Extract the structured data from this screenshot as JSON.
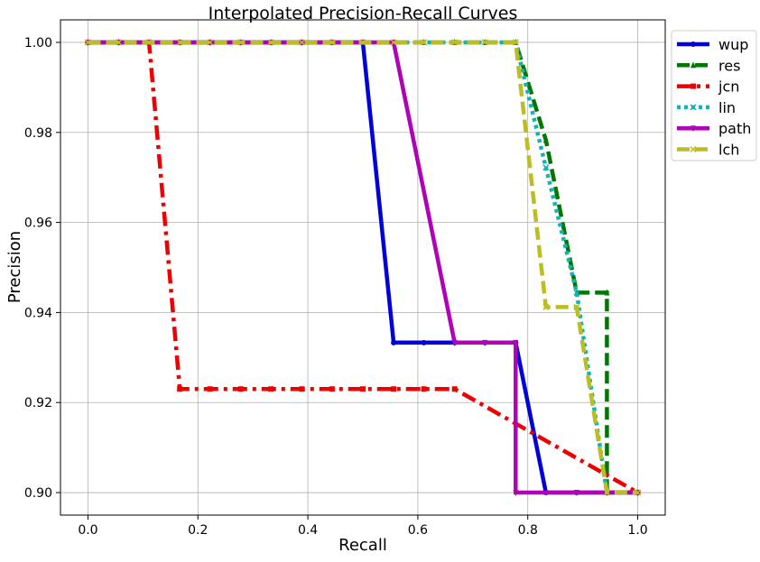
{
  "chart_data": {
    "type": "line",
    "title": "Interpolated Precision-Recall Curves",
    "xlabel": "Recall",
    "ylabel": "Precision",
    "xlim": [
      -0.05,
      1.05
    ],
    "ylim": [
      0.895,
      1.005
    ],
    "xticks": [
      0.0,
      0.2,
      0.4,
      0.6,
      0.8,
      1.0
    ],
    "xtick_labels": [
      "0.0",
      "0.2",
      "0.4",
      "0.6",
      "0.8",
      "1.0"
    ],
    "yticks": [
      0.9,
      0.92,
      0.94,
      0.96,
      0.98,
      1.0
    ],
    "ytick_labels": [
      "0.90",
      "0.92",
      "0.94",
      "0.96",
      "0.98",
      "1.00"
    ],
    "grid": true,
    "legend_position": "outside-top-right",
    "series": [
      {
        "name": "wup",
        "color": "#0000dd",
        "dash": "solid",
        "marker": "circle",
        "points": [
          [
            0.0,
            1.0
          ],
          [
            0.056,
            1.0
          ],
          [
            0.111,
            1.0
          ],
          [
            0.167,
            1.0
          ],
          [
            0.222,
            1.0
          ],
          [
            0.278,
            1.0
          ],
          [
            0.333,
            1.0
          ],
          [
            0.389,
            1.0
          ],
          [
            0.444,
            1.0
          ],
          [
            0.5,
            1.0
          ],
          [
            0.556,
            0.9333
          ],
          [
            0.611,
            0.9333
          ],
          [
            0.667,
            0.9333
          ],
          [
            0.722,
            0.9333
          ],
          [
            0.778,
            0.9333
          ],
          [
            0.833,
            0.9
          ],
          [
            0.889,
            0.9
          ],
          [
            0.944,
            0.9
          ],
          [
            1.0,
            0.9
          ]
        ]
      },
      {
        "name": "res",
        "color": "#007700",
        "dash": "dashed",
        "marker": "triangle",
        "points": [
          [
            0.0,
            1.0
          ],
          [
            0.056,
            1.0
          ],
          [
            0.111,
            1.0
          ],
          [
            0.167,
            1.0
          ],
          [
            0.222,
            1.0
          ],
          [
            0.278,
            1.0
          ],
          [
            0.333,
            1.0
          ],
          [
            0.389,
            1.0
          ],
          [
            0.444,
            1.0
          ],
          [
            0.5,
            1.0
          ],
          [
            0.556,
            1.0
          ],
          [
            0.611,
            1.0
          ],
          [
            0.667,
            1.0
          ],
          [
            0.722,
            1.0
          ],
          [
            0.778,
            1.0
          ],
          [
            0.833,
            0.9783
          ],
          [
            0.889,
            0.9444
          ],
          [
            0.944,
            0.9444
          ],
          [
            0.944,
            0.9
          ],
          [
            1.0,
            0.9
          ]
        ]
      },
      {
        "name": "jcn",
        "color": "#ee0000",
        "dash": "dashdot",
        "marker": "square",
        "points": [
          [
            0.0,
            1.0
          ],
          [
            0.056,
            1.0
          ],
          [
            0.111,
            1.0
          ],
          [
            0.167,
            0.923
          ],
          [
            0.222,
            0.923
          ],
          [
            0.278,
            0.923
          ],
          [
            0.333,
            0.923
          ],
          [
            0.389,
            0.923
          ],
          [
            0.444,
            0.923
          ],
          [
            0.5,
            0.923
          ],
          [
            0.556,
            0.923
          ],
          [
            0.611,
            0.923
          ],
          [
            0.667,
            0.923
          ],
          [
            1.0,
            0.9
          ]
        ]
      },
      {
        "name": "lin",
        "color": "#11b3b3",
        "dash": "dotted",
        "marker": "x",
        "points": [
          [
            0.0,
            1.0
          ],
          [
            0.056,
            1.0
          ],
          [
            0.111,
            1.0
          ],
          [
            0.167,
            1.0
          ],
          [
            0.222,
            1.0
          ],
          [
            0.278,
            1.0
          ],
          [
            0.333,
            1.0
          ],
          [
            0.389,
            1.0
          ],
          [
            0.444,
            1.0
          ],
          [
            0.5,
            1.0
          ],
          [
            0.556,
            1.0
          ],
          [
            0.611,
            1.0
          ],
          [
            0.667,
            1.0
          ],
          [
            0.722,
            1.0
          ],
          [
            0.778,
            1.0
          ],
          [
            0.833,
            0.9722
          ],
          [
            0.889,
            0.9444
          ],
          [
            0.944,
            0.9
          ],
          [
            1.0,
            0.9
          ]
        ]
      },
      {
        "name": "path",
        "color": "#b000b8",
        "dash": "solid",
        "marker": "triangle-down",
        "points": [
          [
            0.0,
            1.0
          ],
          [
            0.056,
            1.0
          ],
          [
            0.111,
            1.0
          ],
          [
            0.167,
            1.0
          ],
          [
            0.222,
            1.0
          ],
          [
            0.278,
            1.0
          ],
          [
            0.333,
            1.0
          ],
          [
            0.389,
            1.0
          ],
          [
            0.444,
            1.0
          ],
          [
            0.5,
            1.0
          ],
          [
            0.556,
            1.0
          ],
          [
            0.667,
            0.9333
          ],
          [
            0.722,
            0.9333
          ],
          [
            0.778,
            0.9333
          ],
          [
            0.778,
            0.9
          ],
          [
            0.889,
            0.9
          ],
          [
            0.944,
            0.9
          ],
          [
            1.0,
            0.9
          ]
        ]
      },
      {
        "name": "lch",
        "color": "#bcbd22",
        "dash": "dashed",
        "marker": "x",
        "points": [
          [
            0.0,
            1.0
          ],
          [
            0.056,
            1.0
          ],
          [
            0.111,
            1.0
          ],
          [
            0.167,
            1.0
          ],
          [
            0.222,
            1.0
          ],
          [
            0.278,
            1.0
          ],
          [
            0.333,
            1.0
          ],
          [
            0.389,
            1.0
          ],
          [
            0.444,
            1.0
          ],
          [
            0.5,
            1.0
          ],
          [
            0.556,
            1.0
          ],
          [
            0.611,
            1.0
          ],
          [
            0.667,
            1.0
          ],
          [
            0.722,
            1.0
          ],
          [
            0.778,
            1.0
          ],
          [
            0.833,
            0.9412
          ],
          [
            0.889,
            0.9412
          ],
          [
            0.944,
            0.9
          ],
          [
            1.0,
            0.9
          ]
        ]
      }
    ]
  }
}
